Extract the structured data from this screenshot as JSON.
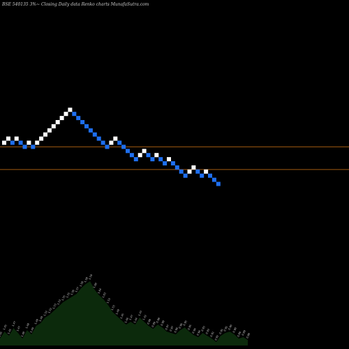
{
  "header": {
    "symbol": "BSE 540135 3%~",
    "caption": "Closing Daily data  Renko  charts MunafaSutra.com"
  },
  "colors": {
    "background": "#000000",
    "up_brick": "#ffffff",
    "down_brick": "#1e6ff0",
    "reference_line": "#a05a10",
    "volume_fill": "#0c2a0c"
  },
  "chart_data": {
    "type": "renko",
    "title": "",
    "bricks": [
      {
        "dir": "up",
        "level": 0
      },
      {
        "dir": "up",
        "level": 1
      },
      {
        "dir": "down",
        "level": 0
      },
      {
        "dir": "up",
        "level": 1
      },
      {
        "dir": "down",
        "level": 0
      },
      {
        "dir": "down",
        "level": -1
      },
      {
        "dir": "up",
        "level": 0
      },
      {
        "dir": "down",
        "level": -1
      },
      {
        "dir": "up",
        "level": 0
      },
      {
        "dir": "up",
        "level": 1
      },
      {
        "dir": "up",
        "level": 2
      },
      {
        "dir": "up",
        "level": 3
      },
      {
        "dir": "up",
        "level": 4
      },
      {
        "dir": "up",
        "level": 5
      },
      {
        "dir": "up",
        "level": 6
      },
      {
        "dir": "up",
        "level": 7
      },
      {
        "dir": "up",
        "level": 8
      },
      {
        "dir": "down",
        "level": 7
      },
      {
        "dir": "down",
        "level": 6
      },
      {
        "dir": "down",
        "level": 5
      },
      {
        "dir": "down",
        "level": 4
      },
      {
        "dir": "down",
        "level": 3
      },
      {
        "dir": "down",
        "level": 2
      },
      {
        "dir": "down",
        "level": 1
      },
      {
        "dir": "down",
        "level": 0
      },
      {
        "dir": "down",
        "level": -1
      },
      {
        "dir": "up",
        "level": 0
      },
      {
        "dir": "up",
        "level": 1
      },
      {
        "dir": "down",
        "level": 0
      },
      {
        "dir": "down",
        "level": -1
      },
      {
        "dir": "down",
        "level": -2
      },
      {
        "dir": "down",
        "level": -3
      },
      {
        "dir": "down",
        "level": -4
      },
      {
        "dir": "up",
        "level": -3
      },
      {
        "dir": "up",
        "level": -2
      },
      {
        "dir": "down",
        "level": -3
      },
      {
        "dir": "down",
        "level": -4
      },
      {
        "dir": "up",
        "level": -3
      },
      {
        "dir": "down",
        "level": -4
      },
      {
        "dir": "down",
        "level": -5
      },
      {
        "dir": "up",
        "level": -4
      },
      {
        "dir": "down",
        "level": -5
      },
      {
        "dir": "down",
        "level": -6
      },
      {
        "dir": "down",
        "level": -7
      },
      {
        "dir": "down",
        "level": -8
      },
      {
        "dir": "up",
        "level": -7
      },
      {
        "dir": "up",
        "level": -6
      },
      {
        "dir": "down",
        "level": -7
      },
      {
        "dir": "down",
        "level": -8
      },
      {
        "dir": "up",
        "level": -7
      },
      {
        "dir": "down",
        "level": -8
      },
      {
        "dir": "down",
        "level": -9
      },
      {
        "dir": "down",
        "level": -10
      }
    ],
    "reference_levels": [
      -1,
      -6.5
    ],
    "volume": {
      "values": [
        10,
        20,
        14,
        25,
        18,
        10,
        22,
        16,
        28,
        32,
        40,
        44,
        50,
        56,
        62,
        66,
        70,
        74,
        82,
        88,
        92,
        80,
        72,
        66,
        58,
        48,
        42,
        36,
        30,
        34,
        30,
        40,
        34,
        28,
        24,
        30,
        26,
        20,
        18,
        16,
        22,
        26,
        20,
        15,
        12,
        18,
        14,
        10,
        5,
        14,
        18,
        20,
        16,
        10,
        12,
        8
      ],
      "labels": [
        "1.45",
        "1.45",
        "1.45",
        "1.47",
        "1.47",
        "1.48",
        "1.48",
        "1.49",
        "1.49",
        "1.49",
        "1.52",
        "1.52",
        "1.53",
        "1.53",
        "1.55",
        "1.55",
        "1.56",
        "1.57",
        "1.58",
        "1.58",
        "1.59",
        "1.60",
        "1.64",
        "1.63",
        "1.53",
        "1.53",
        "1.49",
        "1.45",
        "1.46",
        "1.47",
        "1.44",
        "1.43",
        "1.42",
        "0.99",
        "0.99",
        "0.98",
        "0.98",
        "0.97",
        "0.97",
        "0.96",
        "0.96",
        "0.95",
        "0.95",
        "0.94",
        "0.94",
        "0.93",
        "0.93",
        "0.92",
        "0.92",
        "0.91",
        "0.91",
        "0.90",
        "0.90",
        "0.89",
        "0.89",
        "0.88"
      ]
    }
  }
}
